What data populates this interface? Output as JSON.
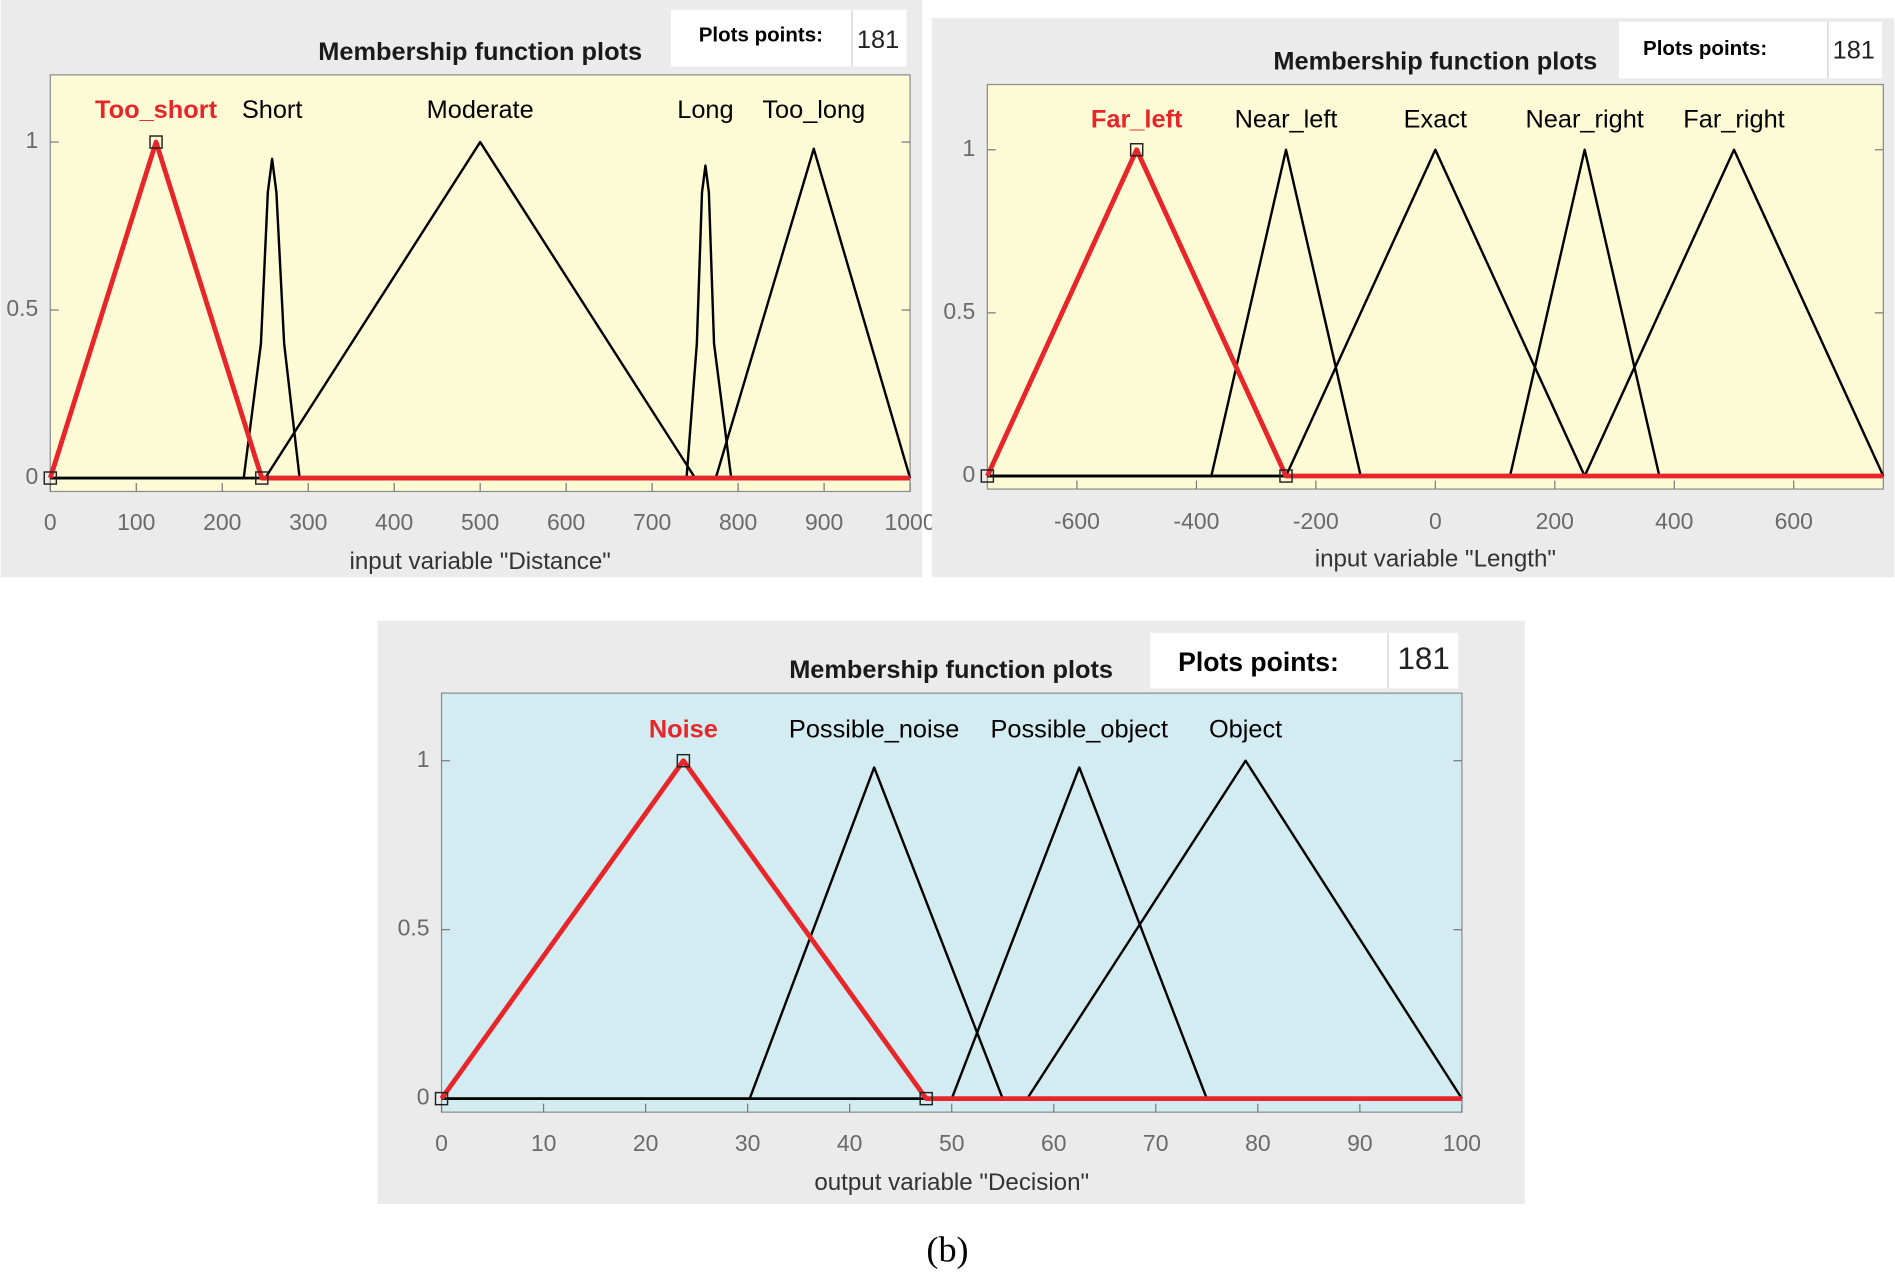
{
  "chart_data": [
    {
      "type": "line",
      "title": "Membership function plots",
      "plot_points_label": "Plots points:",
      "plot_points": 181,
      "xlabel": "input variable \"Distance\"",
      "xlim": [
        0,
        1000
      ],
      "xticks": [
        0,
        100,
        200,
        300,
        400,
        500,
        600,
        700,
        800,
        900,
        1000
      ],
      "ylim": [
        -0.04,
        1.2
      ],
      "yticks": [
        0,
        0.5,
        1
      ],
      "background": "#fdfbd6",
      "series": [
        {
          "name": "Too_short",
          "color": "#e8262a",
          "highlight": true,
          "x": [
            0,
            123,
            246,
            1000
          ],
          "values": [
            0,
            1,
            0,
            0
          ]
        },
        {
          "name": "Short",
          "color": "#000000",
          "x": [
            0,
            225,
            245,
            253,
            258,
            263,
            272,
            290,
            1000
          ],
          "values": [
            0,
            0,
            0.4,
            0.85,
            0.95,
            0.85,
            0.4,
            0,
            0
          ]
        },
        {
          "name": "Moderate",
          "color": "#000000",
          "x": [
            0,
            250,
            500,
            750,
            1000
          ],
          "values": [
            0,
            0,
            1,
            0,
            0
          ]
        },
        {
          "name": "Long",
          "color": "#000000",
          "x": [
            0,
            740,
            752,
            758,
            762,
            766,
            772,
            792,
            1000
          ],
          "values": [
            0,
            0,
            0.4,
            0.85,
            0.93,
            0.85,
            0.4,
            0,
            0
          ]
        },
        {
          "name": "Too_long",
          "color": "#000000",
          "x": [
            0,
            774,
            888,
            1000
          ],
          "values": [
            0,
            0,
            0.98,
            0
          ]
        }
      ]
    },
    {
      "type": "line",
      "title": "Membership function plots",
      "plot_points_label": "Plots points:",
      "plot_points": 181,
      "xlabel": "input variable \"Length\"",
      "xlim": [
        -750,
        750
      ],
      "xticks": [
        -600,
        -400,
        -200,
        0,
        200,
        400,
        600
      ],
      "ylim": [
        -0.04,
        1.2
      ],
      "yticks": [
        0,
        0.5,
        1
      ],
      "background": "#fdfbd6",
      "series": [
        {
          "name": "Far_left",
          "color": "#e8262a",
          "highlight": true,
          "x": [
            -750,
            -500,
            -250,
            750
          ],
          "values": [
            0,
            1,
            0,
            0
          ]
        },
        {
          "name": "Near_left",
          "color": "#000000",
          "x": [
            -750,
            -375,
            -250,
            -125,
            750
          ],
          "values": [
            0,
            0,
            1,
            0,
            0
          ]
        },
        {
          "name": "Exact",
          "color": "#000000",
          "x": [
            -750,
            -250,
            0,
            250,
            750
          ],
          "values": [
            0,
            0,
            1,
            0,
            0
          ]
        },
        {
          "name": "Near_right",
          "color": "#000000",
          "x": [
            -750,
            125,
            250,
            375,
            750
          ],
          "values": [
            0,
            0,
            1,
            0,
            0
          ]
        },
        {
          "name": "Far_right",
          "color": "#000000",
          "x": [
            -750,
            250,
            500,
            750
          ],
          "values": [
            0,
            0,
            1,
            0
          ]
        }
      ]
    },
    {
      "type": "line",
      "title": "Membership function plots",
      "plot_points_label": "Plots points:",
      "plot_points": 181,
      "xlabel": "output variable \"Decision\"",
      "xlim": [
        0,
        100
      ],
      "xticks": [
        0,
        10,
        20,
        30,
        40,
        50,
        60,
        70,
        80,
        90,
        100
      ],
      "ylim": [
        -0.04,
        1.2
      ],
      "yticks": [
        0,
        0.5,
        1
      ],
      "background": "#d3ecf1",
      "series": [
        {
          "name": "Noise",
          "color": "#e8262a",
          "highlight": true,
          "x": [
            0,
            23.7,
            47.5,
            100
          ],
          "values": [
            0,
            1,
            0,
            0
          ]
        },
        {
          "name": "Possible_noise",
          "color": "#000000",
          "x": [
            0,
            30.2,
            42.4,
            55,
            100
          ],
          "values": [
            0,
            0,
            0.98,
            0,
            0
          ]
        },
        {
          "name": "Possible_object",
          "color": "#000000",
          "x": [
            0,
            50,
            62.5,
            75,
            100
          ],
          "values": [
            0,
            0,
            0.98,
            0,
            0
          ]
        },
        {
          "name": "Object",
          "color": "#000000",
          "x": [
            0,
            57.4,
            78.8,
            100
          ],
          "values": [
            0,
            0,
            1,
            0
          ]
        }
      ]
    }
  ],
  "caption": "(b)"
}
